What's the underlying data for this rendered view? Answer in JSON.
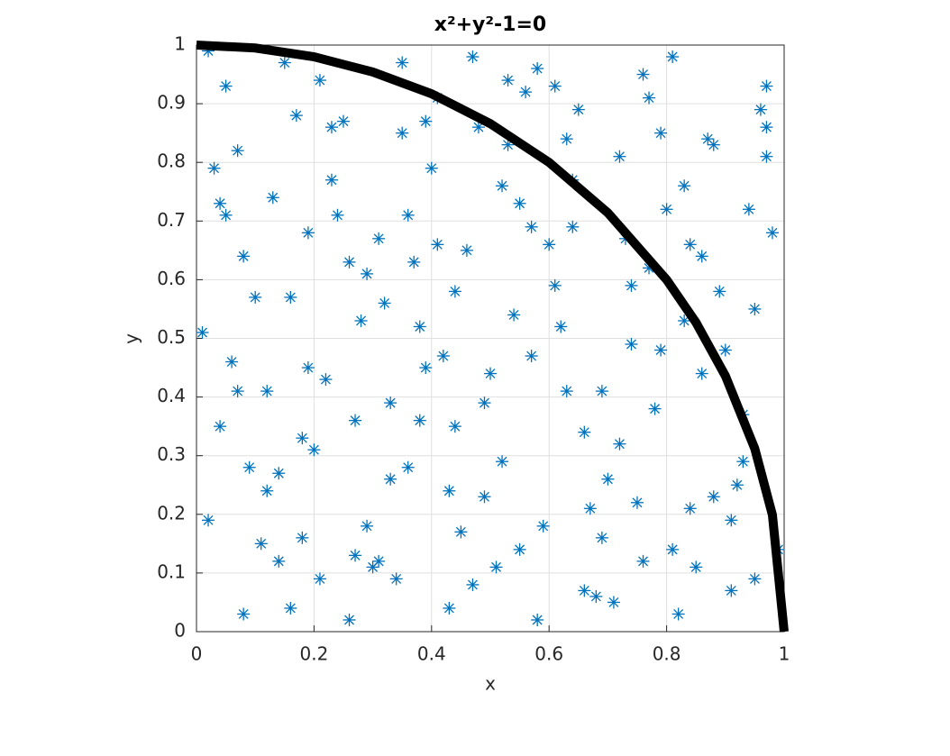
{
  "chart_data": {
    "type": "scatter",
    "title": "x²+y²-1=0",
    "x_label": "x",
    "y_label": "y",
    "xlim": [
      0,
      1
    ],
    "ylim": [
      0,
      1
    ],
    "xticks": [
      0,
      0.2,
      0.4,
      0.6,
      0.8,
      1
    ],
    "yticks": [
      0,
      0.1,
      0.2,
      0.3,
      0.4,
      0.5,
      0.6,
      0.7,
      0.8,
      0.9,
      1
    ],
    "grid": true,
    "series": [
      {
        "type": "scatter",
        "marker": "asterisk",
        "color": "#0072bd",
        "x": [
          0.05,
          0.12,
          0.23,
          0.31,
          0.44,
          0.52,
          0.63,
          0.71,
          0.84,
          0.93,
          0.02,
          0.17,
          0.28,
          0.36,
          0.47,
          0.58,
          0.66,
          0.77,
          0.88,
          0.97,
          0.08,
          0.14,
          0.26,
          0.39,
          0.41,
          0.55,
          0.69,
          0.74,
          0.81,
          0.95,
          0.04,
          0.19,
          0.21,
          0.33,
          0.49,
          0.51,
          0.61,
          0.79,
          0.86,
          0.91,
          0.07,
          0.11,
          0.29,
          0.35,
          0.43,
          0.57,
          0.64,
          0.72,
          0.83,
          0.99,
          0.01,
          0.16,
          0.25,
          0.38,
          0.46,
          0.53,
          0.67,
          0.76,
          0.89,
          0.94,
          0.09,
          0.13,
          0.22,
          0.34,
          0.48,
          0.59,
          0.62,
          0.73,
          0.82,
          0.96,
          0.03,
          0.18,
          0.27,
          0.32,
          0.42,
          0.56,
          0.68,
          0.78,
          0.87,
          0.92,
          0.06,
          0.15,
          0.24,
          0.37,
          0.45,
          0.54,
          0.65,
          0.75,
          0.85,
          0.98,
          0.1,
          0.2,
          0.3,
          0.4,
          0.5,
          0.6,
          0.7,
          0.8,
          0.9,
          0.97,
          0.14,
          0.26,
          0.35,
          0.44,
          0.58,
          0.63,
          0.77,
          0.81,
          0.93,
          0.05,
          0.19,
          0.29,
          0.38,
          0.47,
          0.52,
          0.66,
          0.74,
          0.88,
          0.02,
          0.12,
          0.23,
          0.33,
          0.41,
          0.55,
          0.61,
          0.79,
          0.84,
          0.95,
          0.08,
          0.16,
          0.27,
          0.39,
          0.49,
          0.57,
          0.69,
          0.72,
          0.86,
          0.91,
          0.04,
          0.21,
          0.31,
          0.43,
          0.53,
          0.64,
          0.76,
          0.83,
          0.97,
          0.07,
          0.18,
          0.36
        ],
        "y": [
          0.93,
          0.41,
          0.77,
          0.12,
          0.58,
          0.29,
          0.84,
          0.05,
          0.66,
          0.37,
          0.19,
          0.88,
          0.53,
          0.71,
          0.08,
          0.96,
          0.34,
          0.62,
          0.23,
          0.81,
          0.64,
          0.27,
          0.02,
          0.45,
          0.91,
          0.73,
          0.16,
          0.49,
          0.98,
          0.55,
          0.35,
          0.68,
          0.94,
          0.26,
          0.39,
          0.11,
          0.59,
          0.85,
          0.44,
          0.07,
          0.82,
          0.15,
          0.61,
          0.97,
          0.24,
          0.47,
          0.69,
          0.32,
          0.76,
          0.14,
          0.51,
          0.04,
          0.87,
          0.36,
          0.65,
          0.83,
          0.21,
          0.95,
          0.58,
          0.72,
          0.28,
          0.74,
          0.43,
          0.09,
          0.86,
          0.18,
          0.52,
          0.67,
          0.03,
          0.89,
          0.79,
          0.33,
          0.13,
          0.56,
          0.47,
          0.92,
          0.06,
          0.38,
          0.84,
          0.25,
          0.46,
          0.97,
          0.71,
          0.63,
          0.17,
          0.54,
          0.89,
          0.22,
          0.11,
          0.68,
          0.57,
          0.31,
          0.11,
          0.79,
          0.44,
          0.66,
          0.26,
          0.72,
          0.48,
          0.93,
          0.12,
          0.63,
          0.85,
          0.35,
          0.02,
          0.41,
          0.91,
          0.14,
          0.29,
          0.71,
          0.45,
          0.18,
          0.52,
          0.98,
          0.76,
          0.07,
          0.59,
          0.83,
          0.99,
          0.24,
          0.86,
          0.39,
          0.66,
          0.14,
          0.93,
          0.48,
          0.21,
          0.09,
          0.03,
          0.57,
          0.36,
          0.87,
          0.23,
          0.69,
          0.41,
          0.81,
          0.64,
          0.19,
          0.73,
          0.09,
          0.67,
          0.04,
          0.94,
          0.77,
          0.12,
          0.53,
          0.86,
          0.41,
          0.16,
          0.28
        ]
      },
      {
        "type": "line",
        "color": "#000000",
        "x": [
          0,
          0.1,
          0.2,
          0.3,
          0.4,
          0.5,
          0.6,
          0.7,
          0.8,
          0.85,
          0.9,
          0.95,
          0.98,
          1
        ],
        "y": [
          1,
          0.995,
          0.98,
          0.954,
          0.917,
          0.866,
          0.8,
          0.714,
          0.6,
          0.527,
          0.436,
          0.312,
          0.199,
          0
        ]
      }
    ]
  }
}
